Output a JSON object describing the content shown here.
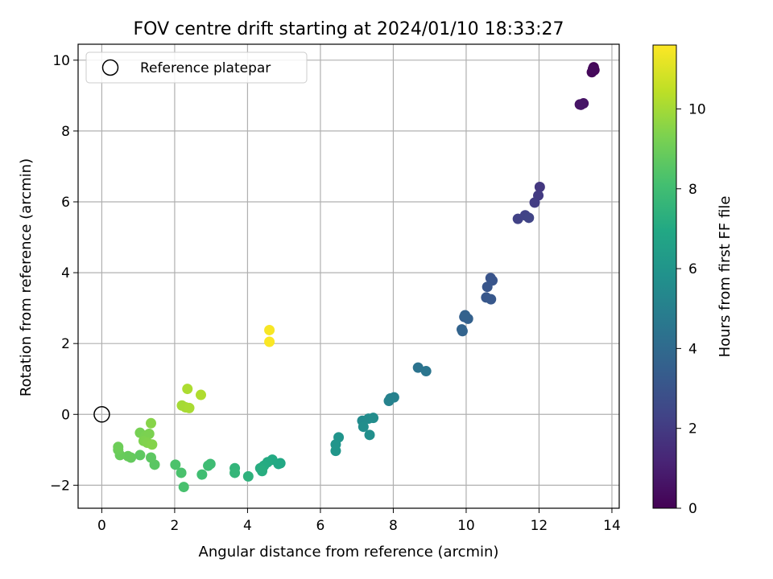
{
  "chart_data": {
    "type": "scatter",
    "title": "FOV centre drift starting at 2024/01/10 18:33:27",
    "xlabel": "Angular distance from reference (arcmin)",
    "ylabel": "Rotation from reference (arcmin)",
    "xlim": [
      -0.65,
      14.2
    ],
    "ylim": [
      -2.65,
      10.45
    ],
    "xticks": [
      "0",
      "2",
      "4",
      "6",
      "8",
      "10",
      "12",
      "14"
    ],
    "yticks": [
      "−2",
      "0",
      "2",
      "4",
      "6",
      "8",
      "10"
    ],
    "grid": true,
    "legend": {
      "position": "top-left",
      "entries": [
        {
          "label": "Reference platepar",
          "marker": "open-circle"
        }
      ]
    },
    "reference_point": {
      "x": 0,
      "y": 0
    },
    "colorbar": {
      "label": "Hours from first FF file",
      "colormap": "viridis",
      "range": [
        0,
        11.6
      ],
      "ticks": [
        "0",
        "2",
        "4",
        "6",
        "8",
        "10"
      ]
    },
    "points": [
      {
        "x": 13.5,
        "y": 9.8,
        "h": 0.1
      },
      {
        "x": 13.52,
        "y": 9.72,
        "h": 0.15
      },
      {
        "x": 13.45,
        "y": 9.66,
        "h": 0.2
      },
      {
        "x": 13.48,
        "y": 9.75,
        "h": 0.25
      },
      {
        "x": 13.12,
        "y": 8.75,
        "h": 0.55
      },
      {
        "x": 13.22,
        "y": 8.78,
        "h": 0.6
      },
      {
        "x": 13.15,
        "y": 8.74,
        "h": 0.65
      },
      {
        "x": 12.02,
        "y": 6.42,
        "h": 1.9
      },
      {
        "x": 11.98,
        "y": 6.18,
        "h": 2.0
      },
      {
        "x": 11.88,
        "y": 5.98,
        "h": 2.05
      },
      {
        "x": 11.42,
        "y": 5.52,
        "h": 2.25
      },
      {
        "x": 11.62,
        "y": 5.62,
        "h": 2.3
      },
      {
        "x": 11.72,
        "y": 5.55,
        "h": 2.35
      },
      {
        "x": 10.67,
        "y": 3.85,
        "h": 3.0
      },
      {
        "x": 10.72,
        "y": 3.78,
        "h": 3.05
      },
      {
        "x": 10.58,
        "y": 3.6,
        "h": 3.1
      },
      {
        "x": 10.55,
        "y": 3.3,
        "h": 3.15
      },
      {
        "x": 10.68,
        "y": 3.25,
        "h": 3.2
      },
      {
        "x": 9.95,
        "y": 2.75,
        "h": 3.5
      },
      {
        "x": 10.05,
        "y": 2.7,
        "h": 3.55
      },
      {
        "x": 9.97,
        "y": 2.8,
        "h": 3.6
      },
      {
        "x": 9.88,
        "y": 2.4,
        "h": 3.65
      },
      {
        "x": 9.9,
        "y": 2.35,
        "h": 3.7
      },
      {
        "x": 8.68,
        "y": 1.32,
        "h": 4.4
      },
      {
        "x": 8.9,
        "y": 1.22,
        "h": 4.5
      },
      {
        "x": 7.92,
        "y": 0.45,
        "h": 5.0
      },
      {
        "x": 8.02,
        "y": 0.48,
        "h": 5.05
      },
      {
        "x": 7.88,
        "y": 0.38,
        "h": 5.1
      },
      {
        "x": 7.15,
        "y": -0.18,
        "h": 5.5
      },
      {
        "x": 7.32,
        "y": -0.12,
        "h": 5.55
      },
      {
        "x": 7.45,
        "y": -0.1,
        "h": 5.6
      },
      {
        "x": 7.18,
        "y": -0.35,
        "h": 5.65
      },
      {
        "x": 7.35,
        "y": -0.58,
        "h": 5.7
      },
      {
        "x": 6.5,
        "y": -0.65,
        "h": 5.95
      },
      {
        "x": 6.42,
        "y": -0.85,
        "h": 6.0
      },
      {
        "x": 6.42,
        "y": -1.03,
        "h": 6.05
      },
      {
        "x": 4.9,
        "y": -1.38,
        "h": 6.9
      },
      {
        "x": 4.85,
        "y": -1.4,
        "h": 6.95
      },
      {
        "x": 4.68,
        "y": -1.28,
        "h": 7.0
      },
      {
        "x": 4.55,
        "y": -1.35,
        "h": 7.05
      },
      {
        "x": 4.45,
        "y": -1.45,
        "h": 7.1
      },
      {
        "x": 4.35,
        "y": -1.52,
        "h": 7.15
      },
      {
        "x": 4.4,
        "y": -1.6,
        "h": 7.2
      },
      {
        "x": 4.02,
        "y": -1.75,
        "h": 7.4
      },
      {
        "x": 3.65,
        "y": -1.52,
        "h": 7.55
      },
      {
        "x": 3.65,
        "y": -1.65,
        "h": 7.6
      },
      {
        "x": 2.98,
        "y": -1.4,
        "h": 7.9
      },
      {
        "x": 2.92,
        "y": -1.45,
        "h": 7.95
      },
      {
        "x": 2.75,
        "y": -1.7,
        "h": 8.0
      },
      {
        "x": 2.25,
        "y": -2.05,
        "h": 8.2
      },
      {
        "x": 2.18,
        "y": -1.65,
        "h": 8.25
      },
      {
        "x": 2.02,
        "y": -1.42,
        "h": 8.3
      },
      {
        "x": 1.45,
        "y": -1.42,
        "h": 8.6
      },
      {
        "x": 1.35,
        "y": -1.22,
        "h": 8.65
      },
      {
        "x": 1.05,
        "y": -1.15,
        "h": 8.7
      },
      {
        "x": 0.8,
        "y": -1.22,
        "h": 8.8
      },
      {
        "x": 0.72,
        "y": -1.18,
        "h": 8.85
      },
      {
        "x": 0.5,
        "y": -1.15,
        "h": 8.9
      },
      {
        "x": 0.45,
        "y": -1.0,
        "h": 8.95
      },
      {
        "x": 0.45,
        "y": -0.92,
        "h": 9.0
      },
      {
        "x": 1.05,
        "y": -0.52,
        "h": 9.2
      },
      {
        "x": 1.2,
        "y": -0.6,
        "h": 9.25
      },
      {
        "x": 1.3,
        "y": -0.55,
        "h": 9.3
      },
      {
        "x": 1.15,
        "y": -0.75,
        "h": 9.35
      },
      {
        "x": 1.25,
        "y": -0.8,
        "h": 9.4
      },
      {
        "x": 1.38,
        "y": -0.85,
        "h": 9.45
      },
      {
        "x": 1.35,
        "y": -0.25,
        "h": 9.5
      },
      {
        "x": 2.2,
        "y": 0.25,
        "h": 10.0
      },
      {
        "x": 2.3,
        "y": 0.2,
        "h": 10.05
      },
      {
        "x": 2.4,
        "y": 0.18,
        "h": 10.1
      },
      {
        "x": 2.35,
        "y": 0.72,
        "h": 10.15
      },
      {
        "x": 2.72,
        "y": 0.55,
        "h": 10.2
      },
      {
        "x": 4.6,
        "y": 2.38,
        "h": 11.5
      },
      {
        "x": 4.6,
        "y": 2.05,
        "h": 11.55
      }
    ]
  }
}
